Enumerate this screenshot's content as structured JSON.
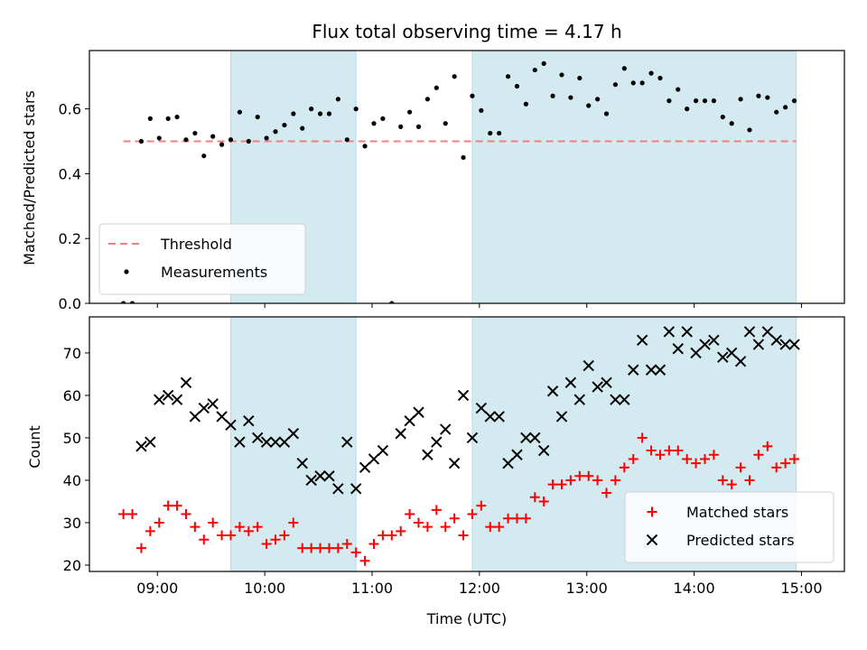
{
  "chart_data": [
    {
      "type": "scatter",
      "title": "Flux total observing time = 4.17 h",
      "xlabel": "",
      "ylabel": "Matched/Predicted stars",
      "ylim": [
        0.0,
        0.78
      ],
      "xlim": [
        "08:22",
        "15:24"
      ],
      "yticks": [
        "0.0",
        "0.2",
        "0.4",
        "0.6"
      ],
      "ytick_values": [
        0.0,
        0.2,
        0.4,
        0.6
      ],
      "grid": false,
      "legend_position": "lower-left",
      "shaded_ranges": [
        [
          "09:41",
          "10:51"
        ],
        [
          "11:56",
          "14:57"
        ]
      ],
      "shade_color": "#d3eaf1",
      "threshold": {
        "name": "Threshold",
        "value": 0.5,
        "x_range": [
          "08:41",
          "14:57"
        ],
        "color": "#f08080",
        "style": "dashed"
      },
      "series": [
        {
          "name": "Measurements",
          "color": "#000000",
          "marker": "dot",
          "x": [
            "08:41",
            "08:46",
            "08:51",
            "08:56",
            "09:01",
            "09:06",
            "09:11",
            "09:16",
            "09:21",
            "09:26",
            "09:31",
            "09:36",
            "09:41",
            "09:46",
            "09:51",
            "09:56",
            "10:01",
            "10:06",
            "10:11",
            "10:16",
            "10:21",
            "10:26",
            "10:31",
            "10:36",
            "10:41",
            "10:46",
            "10:51",
            "10:56",
            "11:01",
            "11:06",
            "11:11",
            "11:16",
            "11:21",
            "11:26",
            "11:31",
            "11:36",
            "11:41",
            "11:46",
            "11:51",
            "11:56",
            "12:01",
            "12:06",
            "12:11",
            "12:16",
            "12:21",
            "12:26",
            "12:31",
            "12:36",
            "12:41",
            "12:46",
            "12:51",
            "12:56",
            "13:01",
            "13:06",
            "13:11",
            "13:16",
            "13:21",
            "13:26",
            "13:31",
            "13:36",
            "13:41",
            "13:46",
            "13:51",
            "13:56",
            "14:01",
            "14:06",
            "14:11",
            "14:16",
            "14:21",
            "14:26",
            "14:31",
            "14:36",
            "14:41",
            "14:46",
            "14:51",
            "14:56"
          ],
          "y": [
            0.0,
            0.0,
            0.5,
            0.57,
            0.51,
            0.57,
            0.575,
            0.505,
            0.525,
            0.455,
            0.515,
            0.49,
            0.505,
            0.59,
            0.5,
            0.575,
            0.51,
            0.53,
            0.55,
            0.585,
            0.54,
            0.6,
            0.585,
            0.585,
            0.63,
            0.505,
            0.6,
            0.485,
            0.555,
            0.57,
            0.0,
            0.545,
            0.59,
            0.545,
            0.63,
            0.665,
            0.555,
            0.7,
            0.45,
            0.64,
            0.595,
            0.525,
            0.525,
            0.7,
            0.67,
            0.615,
            0.72,
            0.74,
            0.64,
            0.705,
            0.635,
            0.695,
            0.61,
            0.63,
            0.585,
            0.675,
            0.725,
            0.68,
            0.68,
            0.71,
            0.695,
            0.625,
            0.66,
            0.6,
            0.625,
            0.625,
            0.625,
            0.575,
            0.555,
            0.63,
            0.535,
            0.64,
            0.635,
            0.59,
            0.605,
            0.625
          ]
        }
      ]
    },
    {
      "type": "scatter",
      "title": "",
      "xlabel": "Time (UTC)",
      "ylabel": "Count",
      "ylim": [
        18.5,
        78.5
      ],
      "xlim": [
        "08:22",
        "15:24"
      ],
      "xticks": [
        "09:00",
        "10:00",
        "11:00",
        "12:00",
        "13:00",
        "14:00",
        "15:00"
      ],
      "yticks": [
        "20",
        "30",
        "40",
        "50",
        "60",
        "70"
      ],
      "ytick_values": [
        20,
        30,
        40,
        50,
        60,
        70
      ],
      "grid": false,
      "legend_position": "lower-right",
      "shaded_ranges": [
        [
          "09:41",
          "10:51"
        ],
        [
          "11:56",
          "14:57"
        ]
      ],
      "shade_color": "#d3eaf1",
      "series": [
        {
          "name": "Matched stars",
          "color": "#ff0000",
          "marker": "plus",
          "x": [
            "08:41",
            "08:46",
            "08:51",
            "08:56",
            "09:01",
            "09:06",
            "09:11",
            "09:16",
            "09:21",
            "09:26",
            "09:31",
            "09:36",
            "09:41",
            "09:46",
            "09:51",
            "09:56",
            "10:01",
            "10:06",
            "10:11",
            "10:16",
            "10:21",
            "10:26",
            "10:31",
            "10:36",
            "10:41",
            "10:46",
            "10:51",
            "10:56",
            "11:01",
            "11:06",
            "11:11",
            "11:16",
            "11:21",
            "11:26",
            "11:31",
            "11:36",
            "11:41",
            "11:46",
            "11:51",
            "11:56",
            "12:01",
            "12:06",
            "12:11",
            "12:16",
            "12:21",
            "12:26",
            "12:31",
            "12:36",
            "12:41",
            "12:46",
            "12:51",
            "12:56",
            "13:01",
            "13:06",
            "13:11",
            "13:16",
            "13:21",
            "13:26",
            "13:31",
            "13:36",
            "13:41",
            "13:46",
            "13:51",
            "13:56",
            "14:01",
            "14:06",
            "14:11",
            "14:16",
            "14:21",
            "14:26",
            "14:31",
            "14:36",
            "14:41",
            "14:46",
            "14:51",
            "14:56"
          ],
          "y": [
            32,
            32,
            24,
            28,
            30,
            34,
            34,
            32,
            29,
            26,
            30,
            27,
            27,
            29,
            28,
            29,
            25,
            26,
            27,
            30,
            24,
            24,
            24,
            24,
            24,
            25,
            23,
            21,
            25,
            27,
            27,
            28,
            32,
            30,
            29,
            33,
            29,
            31,
            27,
            32,
            34,
            29,
            29,
            31,
            31,
            31,
            36,
            35,
            39,
            39,
            40,
            41,
            41,
            40,
            37,
            40,
            43,
            45,
            50,
            47,
            46,
            47,
            47,
            45,
            44,
            45,
            46,
            40,
            39,
            43,
            40,
            46,
            48,
            43,
            44,
            45
          ]
        },
        {
          "name": "Predicted stars",
          "color": "#000000",
          "marker": "x",
          "x": [
            "08:51",
            "08:56",
            "09:01",
            "09:06",
            "09:11",
            "09:16",
            "09:21",
            "09:26",
            "09:31",
            "09:36",
            "09:41",
            "09:46",
            "09:51",
            "09:56",
            "10:01",
            "10:06",
            "10:11",
            "10:16",
            "10:21",
            "10:26",
            "10:31",
            "10:36",
            "10:41",
            "10:46",
            "10:51",
            "10:56",
            "11:01",
            "11:06",
            "11:16",
            "11:21",
            "11:26",
            "11:31",
            "11:36",
            "11:41",
            "11:46",
            "11:51",
            "11:56",
            "12:01",
            "12:06",
            "12:11",
            "12:16",
            "12:21",
            "12:26",
            "12:31",
            "12:36",
            "12:41",
            "12:46",
            "12:51",
            "12:56",
            "13:01",
            "13:06",
            "13:11",
            "13:16",
            "13:21",
            "13:26",
            "13:31",
            "13:36",
            "13:41",
            "13:46",
            "13:51",
            "13:56",
            "14:01",
            "14:06",
            "14:11",
            "14:16",
            "14:21",
            "14:26",
            "14:31",
            "14:36",
            "14:41",
            "14:46",
            "14:51",
            "14:56"
          ],
          "y": [
            48,
            49,
            59,
            60,
            59,
            63,
            55,
            57,
            58,
            55,
            53,
            49,
            54,
            50,
            49,
            49,
            49,
            51,
            44,
            40,
            41,
            41,
            38,
            49,
            38,
            43,
            45,
            47,
            51,
            54,
            56,
            46,
            49,
            52,
            44,
            60,
            50,
            57,
            55,
            55,
            44,
            46,
            50,
            50,
            47,
            61,
            55,
            63,
            59,
            67,
            62,
            63,
            59,
            59,
            66,
            73,
            66,
            66,
            75,
            71,
            75,
            70,
            72,
            73,
            69,
            70,
            68,
            75,
            72,
            75,
            73,
            72,
            72
          ]
        }
      ]
    }
  ]
}
